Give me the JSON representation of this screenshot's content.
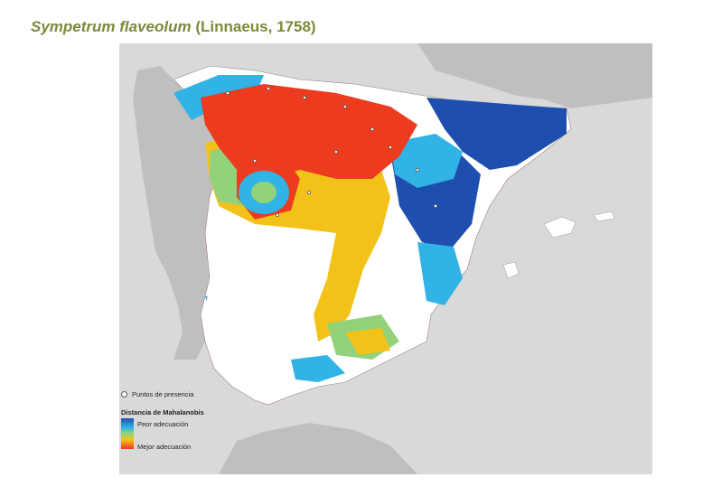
{
  "title": {
    "species": "Sympetrum flaveolum",
    "author": "(Linnaeus, 1758)"
  },
  "legend": {
    "presence_label": "Puntos de presencia",
    "scale_title": "Distancia de Mahalanobis",
    "worst_label": "Peor adecuación",
    "best_label": "Mejor adecuación"
  },
  "colors": {
    "sea": "#d9d9d9",
    "land_outside": "#bfbfbf",
    "peninsula": "#ffffff",
    "worst": "#1f4fae",
    "poor": "#31b3e6",
    "mid": "#93d27a",
    "good": "#f3c219",
    "best": "#ec3b1f",
    "title": "#7a8a3a"
  }
}
